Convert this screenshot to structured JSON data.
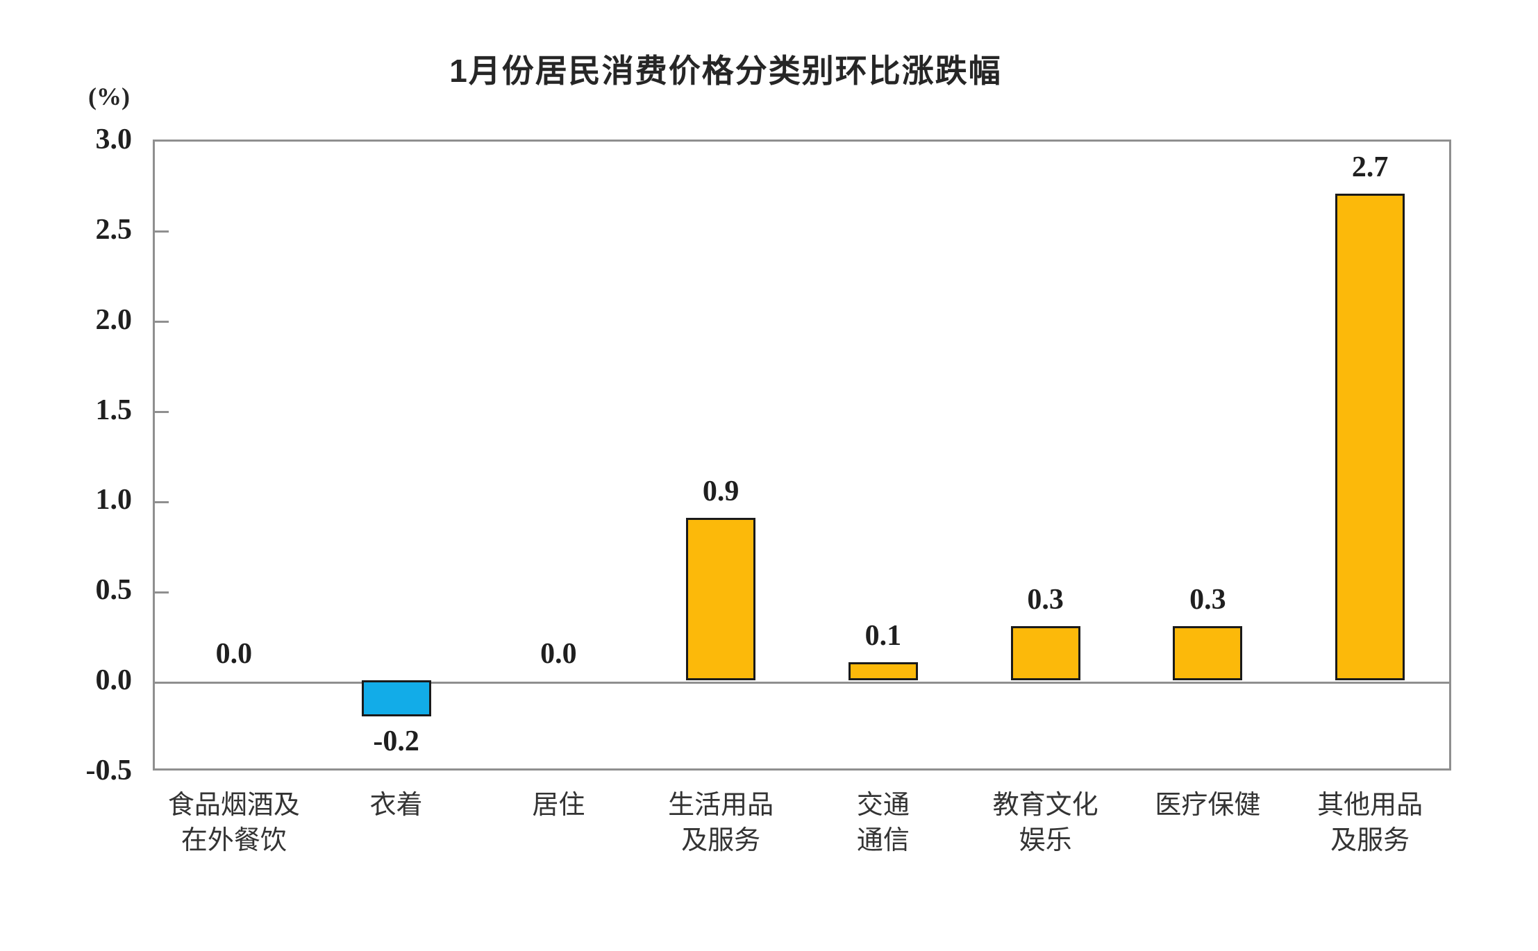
{
  "chart_data": {
    "type": "bar",
    "title": "1月份居民消费价格分类别环比涨跌幅",
    "unit_label": "(%)",
    "categories": [
      "食品烟酒及\n在外餐饮",
      "衣着",
      "居住",
      "生活用品\n及服务",
      "交通\n通信",
      "教育文化\n娱乐",
      "医疗保健",
      "其他用品\n及服务"
    ],
    "values": [
      0.0,
      -0.2,
      0.0,
      0.9,
      0.1,
      0.3,
      0.3,
      2.7
    ],
    "value_labels": [
      "0.0",
      "-0.2",
      "0.0",
      "0.9",
      "0.1",
      "0.3",
      "0.3",
      "2.7"
    ],
    "xlabel": "",
    "ylabel": "(%)",
    "ylim": [
      -0.5,
      3.0
    ],
    "y_ticks": [
      3.0,
      2.5,
      2.0,
      1.5,
      1.0,
      0.5,
      0.0,
      -0.5
    ],
    "y_tick_labels": [
      "3.0",
      "2.5",
      "2.0",
      "1.5",
      "1.0",
      "0.5",
      "0.0",
      "-0.5"
    ],
    "grid": false,
    "legend": false,
    "colors": {
      "positive_bar": "#FCB90A",
      "negative_bar": "#12ACE8",
      "bar_border": "#1A1A1A",
      "axis": "#8F8F8F",
      "text": "#1F1F1F"
    }
  }
}
